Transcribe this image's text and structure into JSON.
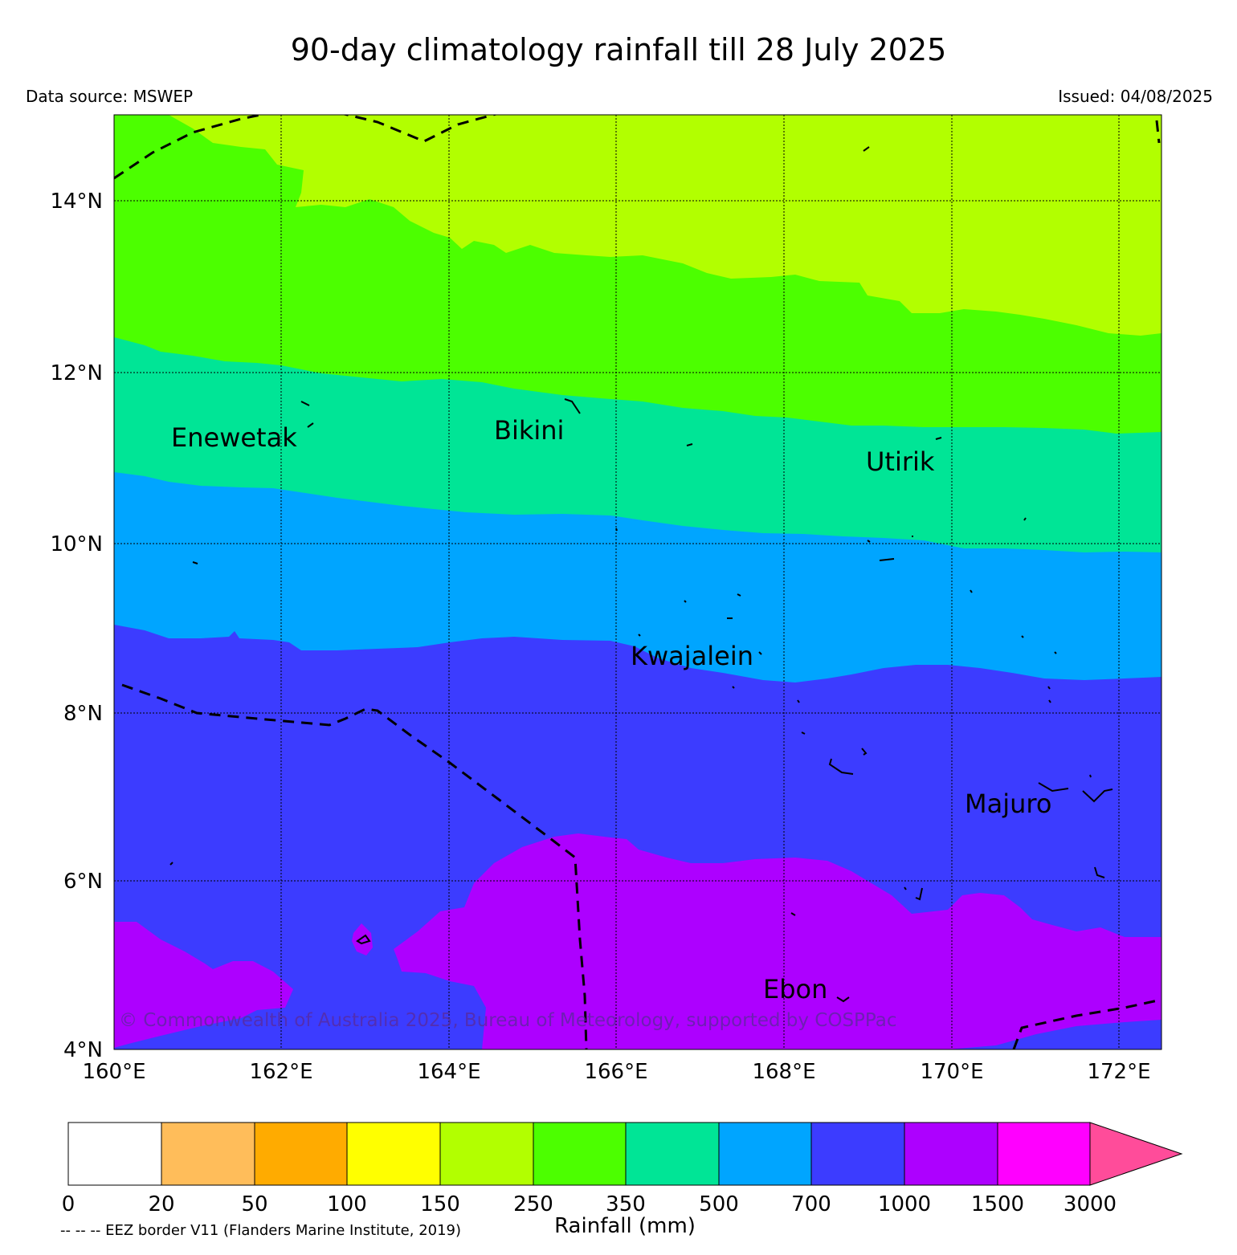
{
  "title": "90-day climatology rainfall till 28 July 2025",
  "data_source": "Data source: MSWEP",
  "issued": "Issued: 04/08/2025",
  "copyright": "© Commonwealth of Australia 2025, Bureau of Meteorology, supported by COSPPac",
  "eez_note": "-- -- -- EEZ border V11 (Flanders Marine Institute, 2019)",
  "map": {
    "lon_labels": [
      "160°E",
      "162°E",
      "164°E",
      "166°E",
      "168°E",
      "170°E",
      "172°E"
    ],
    "lat_labels": [
      "14°N",
      "12°N",
      "10°N",
      "8°N",
      "6°N",
      "4°N"
    ],
    "lon_range": [
      160,
      172.5
    ],
    "lat_range": [
      4,
      15
    ],
    "places": [
      {
        "name": "Enewetak",
        "lon": 160.7,
        "lat": 11.2
      },
      {
        "name": "Bikini",
        "lon": 164.55,
        "lat": 11.3
      },
      {
        "name": "Utirik",
        "lon": 168.98,
        "lat": 10.92
      },
      {
        "name": "Kwajalein",
        "lon": 166.2,
        "lat": 8.62
      },
      {
        "name": "Majuro",
        "lon": 170.17,
        "lat": 6.85
      },
      {
        "name": "Ebon",
        "lon": 167.75,
        "lat": 4.67
      }
    ],
    "legend": [
      "-- -- -- EEZ border V11 (Flanders Marine Institute, 2019)"
    ]
  },
  "colorbar": {
    "title": "Rainfall (mm)",
    "ticks": [
      "0",
      "20",
      "50",
      "100",
      "150",
      "250",
      "350",
      "500",
      "700",
      "1000",
      "1500",
      "3000"
    ],
    "colors": [
      "#ffffff",
      "#ffbd5a",
      "#ffab00",
      "#ffff00",
      "#b2ff00",
      "#4cff00",
      "#00e596",
      "#00a5ff",
      "#3c3cff",
      "#ad00ff",
      "#ff00ff"
    ],
    "extend_color": "#ff4c9a"
  }
}
